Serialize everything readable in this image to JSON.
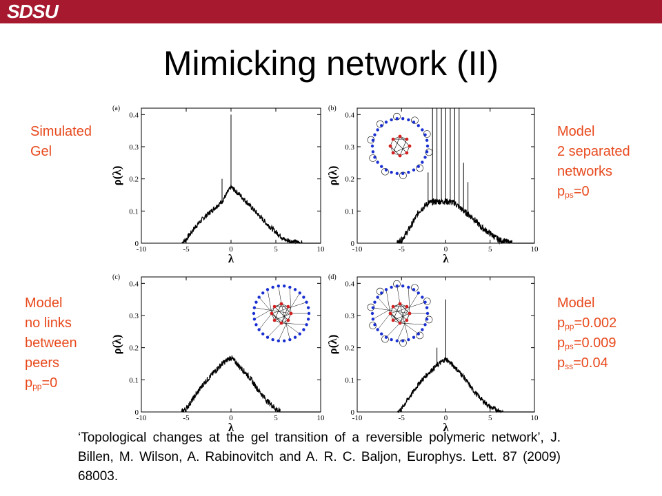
{
  "header": {
    "logo_text": "SDSU",
    "bar_color": "#a6192e"
  },
  "slide": {
    "title": "Mimicking network (II)"
  },
  "annotations": {
    "a_lines": [
      "Simulated",
      "Gel"
    ],
    "b_lines": [
      "Model",
      "2 separated",
      "networks"
    ],
    "b_param": {
      "p": "p",
      "sub": "ps",
      "val": "=0"
    },
    "c_lines": [
      "Model",
      "no links",
      "between",
      "peers"
    ],
    "c_param": {
      "p": "p",
      "sub": "pp",
      "val": "=0"
    },
    "d_lines": [
      "Model"
    ],
    "d_params": [
      {
        "p": "p",
        "sub": "pp",
        "val": "=0.002"
      },
      {
        "p": "p",
        "sub": "ps",
        "val": "=0.009"
      },
      {
        "p": "p",
        "sub": "ss",
        "val": "=0.04"
      }
    ],
    "color": "#e8491d"
  },
  "citation": "‘Topological changes at the gel transition of a reversible polymeric network’, J. Billen, M. Wilson, A. Rabinovitch and A. R. C. Baljon, Europhys. Lett. 87 (2009) 68003.",
  "chart_data": [
    {
      "type": "line",
      "panel": "(a)",
      "xlabel": "λ",
      "ylabel": "ρ(λ)",
      "xlim": [
        -10,
        10
      ],
      "ylim": [
        0,
        0.42
      ],
      "xticks": [
        "-10",
        "-5",
        "0",
        "5",
        "10"
      ],
      "yticks": [
        "0",
        "0.1",
        "0.2",
        "0.3",
        "0.4"
      ],
      "x": [
        -5.5,
        -5,
        -4,
        -3,
        -2,
        -1,
        0,
        1,
        2,
        3,
        4,
        5,
        6,
        7,
        8
      ],
      "y": [
        0,
        0.012,
        0.05,
        0.08,
        0.105,
        0.13,
        0.175,
        0.15,
        0.12,
        0.09,
        0.06,
        0.035,
        0.01,
        0.005,
        0
      ],
      "spikes": [
        {
          "x": 0,
          "y": 0.4
        },
        {
          "x": -1,
          "y": 0.2
        }
      ],
      "noise": 0.008
    },
    {
      "type": "line",
      "panel": "(b)",
      "xlabel": "λ",
      "ylabel": "ρ(λ)",
      "xlim": [
        -10,
        10
      ],
      "ylim": [
        0,
        0.42
      ],
      "xticks": [
        "-10",
        "-5",
        "0",
        "5",
        "10"
      ],
      "yticks": [
        "0",
        "0.1",
        "0.2",
        "0.3",
        "0.4"
      ],
      "x": [
        -5.5,
        -5,
        -4,
        -3,
        -2,
        -1,
        0,
        1,
        2,
        3,
        4,
        5,
        6,
        7,
        7.5
      ],
      "y": [
        0,
        0.01,
        0.05,
        0.1,
        0.125,
        0.13,
        0.13,
        0.125,
        0.1,
        0.08,
        0.05,
        0.03,
        0.01,
        0.003,
        0
      ],
      "spikes": [
        {
          "x": -1.5,
          "y": 0.42
        },
        {
          "x": -1,
          "y": 0.42
        },
        {
          "x": -0.5,
          "y": 0.42
        },
        {
          "x": 0,
          "y": 0.42
        },
        {
          "x": 0.5,
          "y": 0.42
        },
        {
          "x": 1,
          "y": 0.42
        },
        {
          "x": 1.5,
          "y": 0.42
        },
        {
          "x": 2,
          "y": 0.25
        },
        {
          "x": -2,
          "y": 0.22
        },
        {
          "x": 2.5,
          "y": 0.19
        }
      ],
      "noise": 0.01
    },
    {
      "type": "line",
      "panel": "(c)",
      "xlabel": "λ",
      "ylabel": "ρ(λ)",
      "xlim": [
        -10,
        10
      ],
      "ylim": [
        0,
        0.42
      ],
      "xticks": [
        "-10",
        "-5",
        "0",
        "5",
        "10"
      ],
      "yticks": [
        "0",
        "0.1",
        "0.2",
        "0.3",
        "0.4"
      ],
      "x": [
        -5.5,
        -5,
        -4,
        -3,
        -2,
        -1,
        0,
        1,
        2,
        3,
        4,
        5,
        5.5
      ],
      "y": [
        0,
        0.01,
        0.05,
        0.09,
        0.12,
        0.15,
        0.17,
        0.14,
        0.11,
        0.07,
        0.035,
        0.01,
        0
      ],
      "spikes": [],
      "noise": 0.009
    },
    {
      "type": "line",
      "panel": "(d)",
      "xlabel": "λ",
      "ylabel": "ρ(λ)",
      "xlim": [
        -10,
        10
      ],
      "ylim": [
        0,
        0.42
      ],
      "xticks": [
        "-10",
        "-5",
        "0",
        "5",
        "10"
      ],
      "yticks": [
        "0",
        "0.1",
        "0.2",
        "0.3",
        "0.4"
      ],
      "x": [
        -5.5,
        -5,
        -4,
        -3,
        -2,
        -1,
        0,
        1,
        2,
        3,
        4,
        5,
        6,
        6.5
      ],
      "y": [
        0,
        0.01,
        0.05,
        0.09,
        0.12,
        0.145,
        0.165,
        0.14,
        0.11,
        0.07,
        0.04,
        0.015,
        0.003,
        0
      ],
      "spikes": [
        {
          "x": 0,
          "y": 0.35
        },
        {
          "x": -1,
          "y": 0.2
        }
      ],
      "noise": 0.008
    }
  ]
}
